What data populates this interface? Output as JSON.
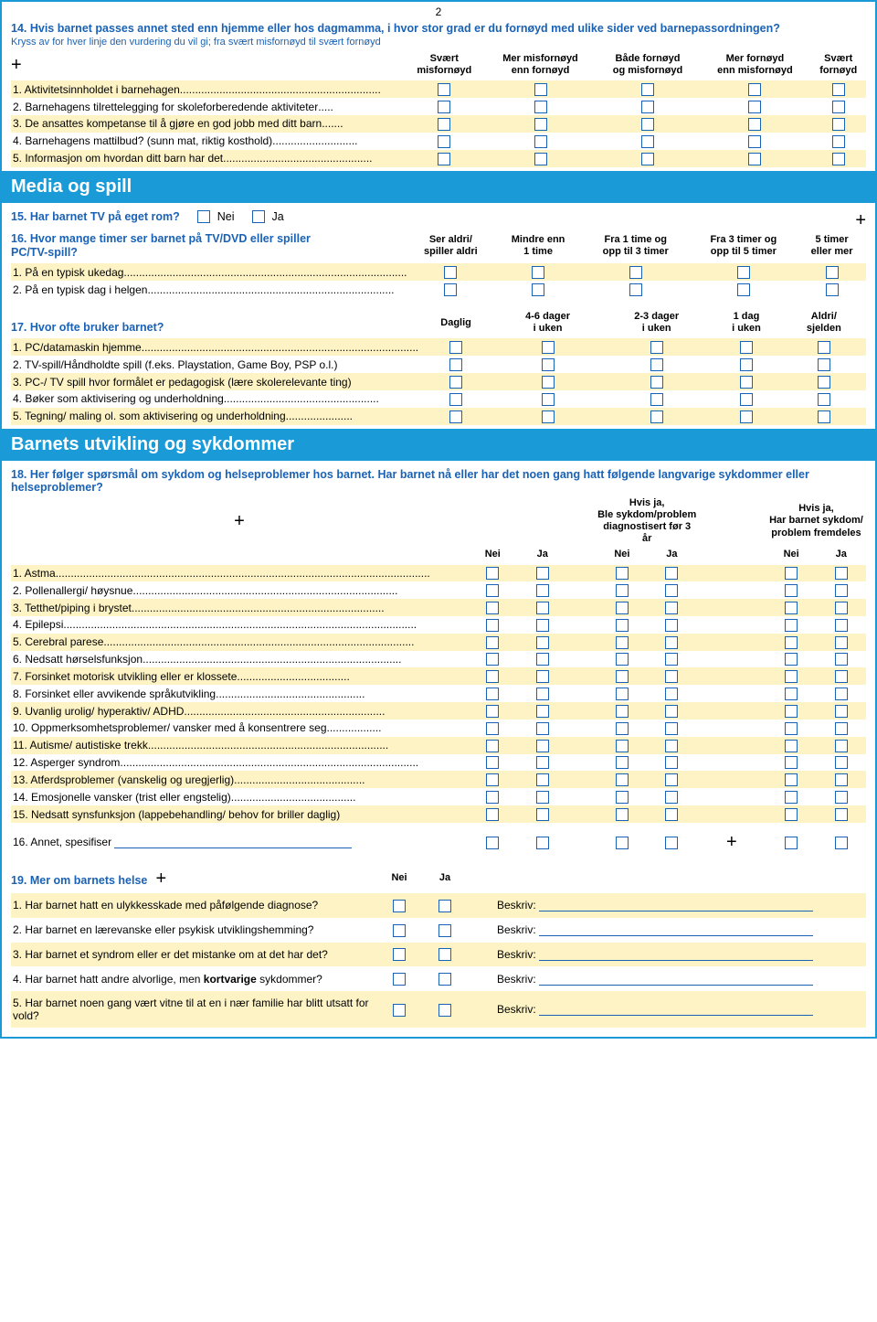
{
  "page_number": "2",
  "colors": {
    "frame": "#1a9bd7",
    "text_blue": "#1a62b5",
    "alt_row": "#fdf3c5"
  },
  "q14": {
    "title": "14. Hvis barnet passes annet sted enn hjemme eller hos dagmamma, i hvor stor grad er du fornøyd med ulike sider ved barnepassordningen?",
    "subtitle": "Kryss av for hver linje den vurdering du vil gi; fra svært misfornøyd til svært fornøyd",
    "headers": [
      "Svært\nmisfornøyd",
      "Mer misfornøyd\nenn fornøyd",
      "Både fornøyd\nog misfornøyd",
      "Mer fornøyd\nenn misfornøyd",
      "Svært\nfornøyd"
    ],
    "rows": [
      "1. Aktivitetsinnholdet i barnehagen",
      "2. Barnehagens tilrettelegging for skoleforberedende aktiviteter",
      "3. De ansattes kompetanse til å gjøre en god jobb med ditt barn",
      "4. Barnehagens mattilbud? (sunn mat, riktig kosthold)",
      "5. Informasjon om hvordan ditt barn har det"
    ]
  },
  "section_media": "Media og spill",
  "q15": {
    "text": "15. Har barnet TV på eget rom?",
    "nei": "Nei",
    "ja": "Ja"
  },
  "q16": {
    "title": "16. Hvor mange timer ser barnet på TV/DVD eller spiller PC/TV-spill?",
    "headers": [
      "Ser aldri/\nspiller aldri",
      "Mindre enn\n1 time",
      "Fra 1 time og\nopp til 3 timer",
      "Fra 3 timer og\nopp til 5 timer",
      "5 timer\neller mer"
    ],
    "rows": [
      "1. På en typisk ukedag",
      "2. På en typisk dag i helgen"
    ]
  },
  "q17": {
    "title": "17. Hvor ofte bruker barnet?",
    "headers": [
      "Daglig",
      "4-6 dager\ni uken",
      "2-3 dager\ni uken",
      "1 dag\ni uken",
      "Aldri/\nsjelden"
    ],
    "rows": [
      "1. PC/datamaskin hjemme",
      "2. TV-spill/Håndholdte spill (f.eks. Playstation, Game Boy, PSP o.l.)",
      "3. PC-/ TV spill hvor formålet er pedagogisk (lære skolerelevante ting)",
      "4. Bøker som aktivisering og underholdning",
      "5. Tegning/ maling ol. som aktivisering og underholdning"
    ]
  },
  "section_dev": "Barnets utvikling og sykdommer",
  "q18": {
    "title": "18. Her følger spørsmål om sykdom og helseproblemer hos barnet. Har barnet nå eller har det noen gang hatt følgende langvarige sykdommer eller helseproblemer?",
    "group_headers": [
      "",
      "Hvis ja,\nBle sykdom/problem\ndiagnostisert før 3 år",
      "Hvis ja,\nHar barnet sykdom/\nproblem fremdeles"
    ],
    "sub_headers": [
      "Nei",
      "Ja",
      "Nei",
      "Ja",
      "Nei",
      "Ja"
    ],
    "rows": [
      "1. Astma",
      "2. Pollenallergi/ høysnue",
      "3. Tetthet/piping i brystet",
      "4. Epilepsi",
      "5. Cerebral parese",
      "6. Nedsatt hørselsfunksjon",
      "7. Forsinket motorisk utvikling eller er klossete",
      "8. Forsinket eller avvikende språkutvikling",
      "9. Uvanlig urolig/ hyperaktiv/ ADHD",
      "10. Oppmerksomhetsproblemer/ vansker med å konsentrere seg",
      "11. Autisme/ autistiske trekk",
      "12. Asperger syndrom",
      "13. Atferdsproblemer (vanskelig og uregjerlig)",
      "14. Emosjonelle vansker (trist eller engstelig)",
      "15. Nedsatt synsfunksjon (lappebehandling/ behov for briller daglig)"
    ],
    "row_other": "16. Annet, spesifiser"
  },
  "q19": {
    "title": "19. Mer om barnets helse",
    "nei": "Nei",
    "ja": "Ja",
    "beskriv": "Beskriv:",
    "rows": [
      "1. Har barnet hatt en ulykkesskade med påfølgende diagnose?",
      "2. Har barnet en lærevanske eller psykisk utviklingshemming?",
      "3. Har barnet et syndrom eller er det mistanke om at det har det?",
      "4. Har barnet hatt andre alvorlige, men kortvarige sykdommer?",
      "5. Har barnet noen gang vært vitne til at en i nær familie har blitt utsatt for vold?"
    ],
    "bold_word": "kortvarige"
  }
}
